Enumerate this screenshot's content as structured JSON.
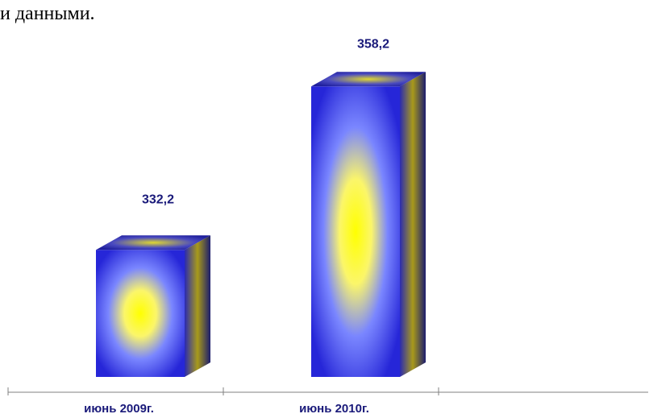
{
  "header": {
    "text": "и данными."
  },
  "chart_data": {
    "type": "bar",
    "style": "3d-column",
    "categories": [
      "июнь 2009г.",
      "июнь 2010г."
    ],
    "series": [
      {
        "values": [
          332.2,
          358.2
        ],
        "data_labels": [
          "332,2",
          "358,2"
        ]
      }
    ],
    "title": "",
    "xlabel": "",
    "ylabel": "",
    "ylim": [
      312,
      364
    ],
    "grid": false,
    "legend": "none",
    "colors": {
      "bar_edge": "#2a2ad8",
      "bar_center": "#ffff00",
      "bar_side_dark": "#1c1c6e",
      "label_text": "#1a1a7a",
      "axis": "#808080"
    }
  }
}
